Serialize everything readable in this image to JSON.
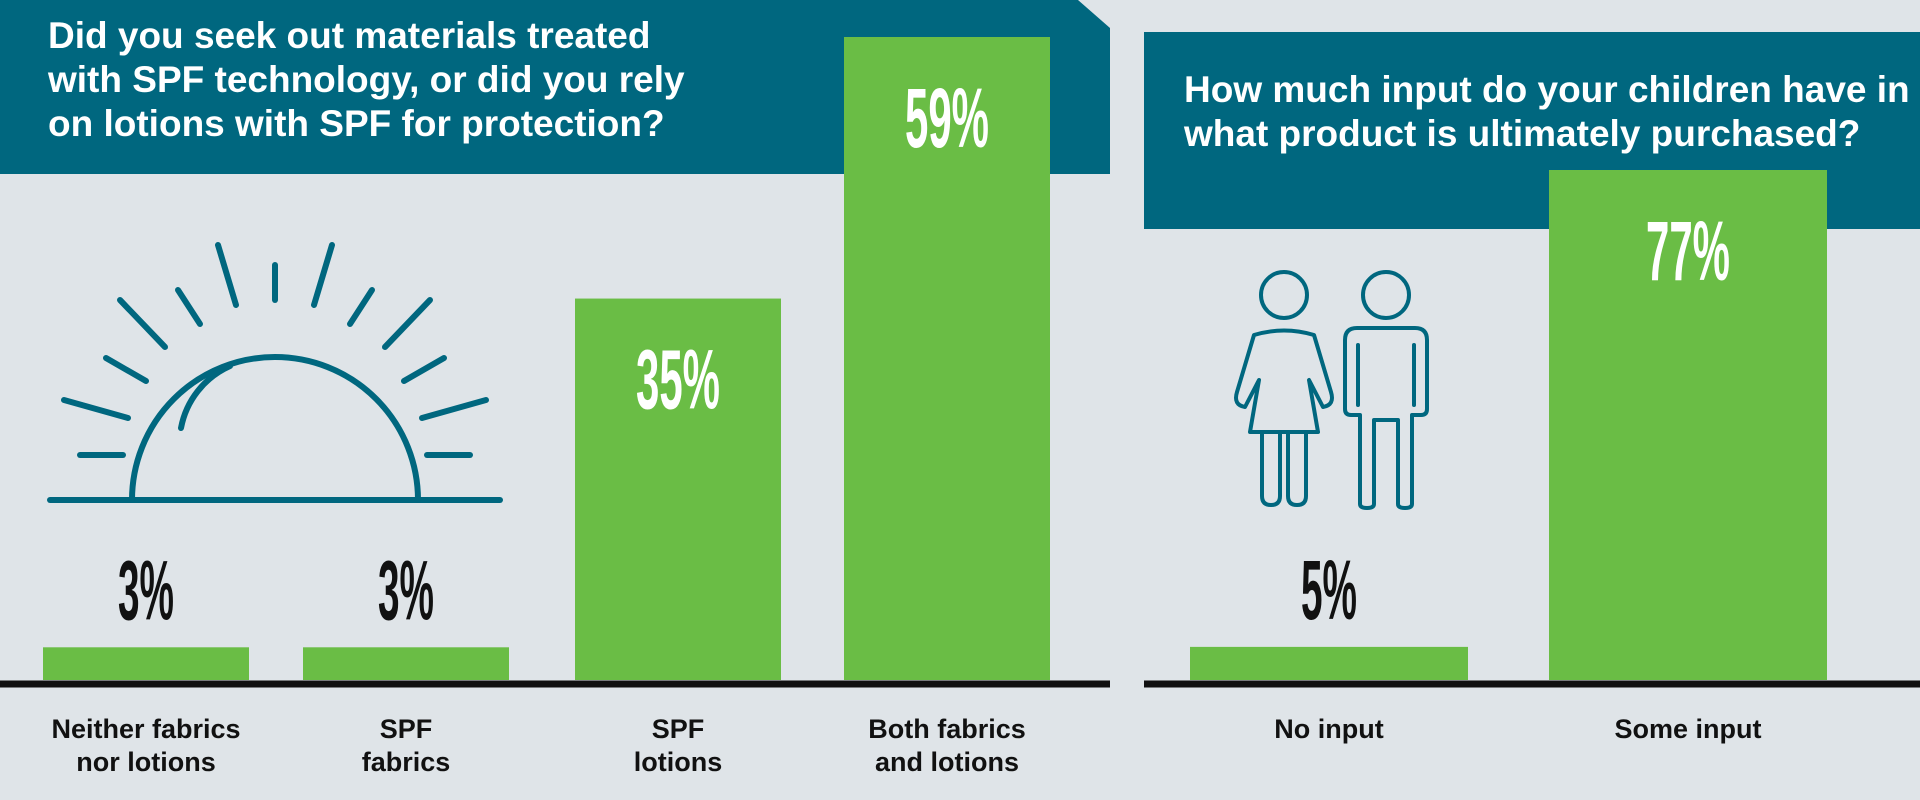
{
  "colors": {
    "background": "#dfe4e8",
    "header": "#00677f",
    "bar": "#6abd45",
    "axis": "#111111",
    "icon": "#00677f",
    "label_dark": "#111111",
    "label_light": "#ffffff"
  },
  "chart_data": [
    {
      "type": "bar",
      "title": "Did you seek out materials treated with SPF technology, or did you rely on lotions with SPF for protection?",
      "title_lines": [
        "Did you seek out materials treated",
        "with SPF technology, or did you rely",
        "on lotions with SPF for protection?"
      ],
      "categories": [
        "Neither fabrics nor lotions",
        "SPF fabrics",
        "SPF lotions",
        "Both fabrics and lotions"
      ],
      "category_lines": [
        [
          "Neither fabrics",
          "nor lotions"
        ],
        [
          "SPF",
          "fabrics"
        ],
        [
          "SPF",
          "lotions"
        ],
        [
          "Both fabrics",
          "and lotions"
        ]
      ],
      "values": [
        3,
        3,
        35,
        59
      ],
      "value_labels": [
        "3%",
        "3%",
        "35%",
        "59%"
      ],
      "unit": "%",
      "ylim": [
        0,
        59
      ],
      "grid": false,
      "icon": "sun-icon"
    },
    {
      "type": "bar",
      "title": "How much input do your children have in what product is ultimately purchased?",
      "title_lines": [
        "How much input do your children have in",
        "what product is ultimately purchased?"
      ],
      "categories": [
        "No input",
        "Some input"
      ],
      "category_lines": [
        [
          "No input"
        ],
        [
          "Some input"
        ]
      ],
      "values": [
        5,
        77
      ],
      "value_labels": [
        "5%",
        "77%"
      ],
      "unit": "%",
      "ylim": [
        0,
        77
      ],
      "grid": false,
      "icon": "children-icon"
    }
  ]
}
